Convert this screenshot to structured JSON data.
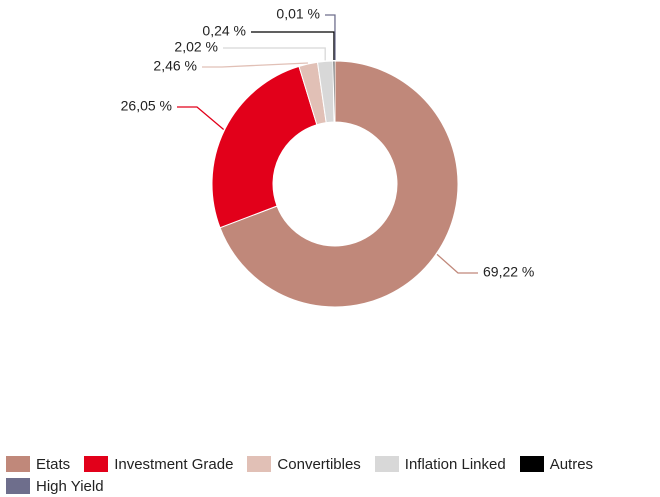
{
  "chart_data": {
    "type": "pie",
    "categories": [
      "Etats",
      "Investment Grade",
      "Convertibles",
      "Inflation Linked",
      "Autres",
      "High Yield"
    ],
    "values": [
      69.22,
      26.05,
      2.46,
      2.02,
      0.24,
      0.01
    ],
    "value_labels": [
      "69,22 %",
      "26,05 %",
      "2,46 %",
      "2,02 %",
      "0,24 %",
      "0,01 %"
    ],
    "colors": [
      "#c0887a",
      "#e2001a",
      "#e1c0b6",
      "#d8d8d8",
      "#000000",
      "#6e6e8c"
    ]
  }
}
